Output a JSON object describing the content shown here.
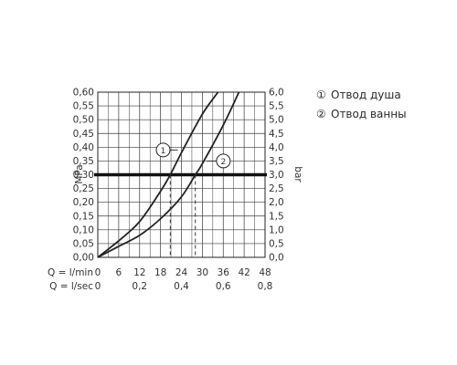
{
  "chart_data": {
    "type": "line",
    "left_axis": {
      "label": "MPa",
      "range": [
        0,
        0.6
      ],
      "ticks": [
        "0,00",
        "0,05",
        "0,10",
        "0,15",
        "0,20",
        "0,25",
        "0,30",
        "0,35",
        "0,40",
        "0,45",
        "0,50",
        "0,55",
        "0,60"
      ]
    },
    "right_axis": {
      "label": "bar",
      "range": [
        0,
        6
      ],
      "ticks": [
        "0,0",
        "0,5",
        "1,0",
        "1,5",
        "2,0",
        "2,5",
        "3,0",
        "3,5",
        "4,0",
        "4,5",
        "5,0",
        "5,5",
        "6,0"
      ]
    },
    "x_axis_lmin": {
      "label": "Q = l/min",
      "range": [
        0,
        48
      ],
      "ticks": [
        "0",
        "6",
        "12",
        "18",
        "24",
        "30",
        "36",
        "42",
        "48"
      ]
    },
    "x_axis_lsec": {
      "label": "Q = l/sec",
      "ticks": [
        "0",
        "0,2",
        "0,4",
        "0,6",
        "0,8"
      ]
    },
    "grid": true,
    "reference_line": {
      "pressure_mpa": 0.3
    },
    "series": [
      {
        "name": "1",
        "x_lmin": [
          0,
          6,
          12,
          18,
          20.8,
          24,
          30,
          34.5
        ],
        "y_mpa": [
          0,
          0.06,
          0.13,
          0.24,
          0.3,
          0.38,
          0.52,
          0.6
        ]
      },
      {
        "name": "2",
        "x_lmin": [
          0,
          6,
          12,
          18,
          24,
          28,
          30,
          36,
          40.5
        ],
        "y_mpa": [
          0,
          0.04,
          0.08,
          0.14,
          0.22,
          0.3,
          0.34,
          0.48,
          0.6
        ]
      }
    ],
    "legend": {
      "position": "right",
      "items": [
        {
          "symbol": "①",
          "text": "Отвод душа"
        },
        {
          "symbol": "②",
          "text": "Отвод ванны"
        }
      ]
    }
  }
}
